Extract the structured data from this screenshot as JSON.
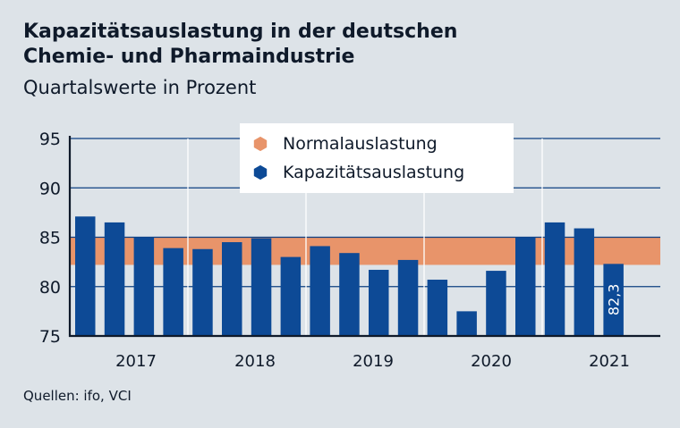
{
  "chart_data": {
    "type": "bar",
    "title": "Kapazitätsauslastung in der deutschen Chemie- und Pharmaindustrie",
    "title_line1": "Kapazitätsauslastung in der deutschen",
    "title_line2": "Chemie- und Pharmaindustrie",
    "subtitle": "Quartalswerte in Prozent",
    "source": "Quellen: ifo, VCI",
    "ylim": [
      75,
      95
    ],
    "yticks": [
      "75",
      "80",
      "85",
      "90",
      "95"
    ],
    "year_labels": [
      "2017",
      "2018",
      "2019",
      "2020",
      "2021"
    ],
    "values": [
      87.1,
      86.5,
      85.0,
      83.9,
      83.8,
      84.5,
      84.9,
      83.0,
      84.1,
      83.4,
      81.7,
      82.7,
      80.7,
      77.5,
      81.6,
      85.0,
      86.5,
      85.9,
      82.3
    ],
    "normal_band": [
      82.2,
      85.0
    ],
    "last_label": "82,3",
    "legend": [
      {
        "label": "Normalauslastung",
        "color": "#e8946a"
      },
      {
        "label": "Kapazitätsauslastung",
        "color": "#0d4a96"
      }
    ]
  }
}
